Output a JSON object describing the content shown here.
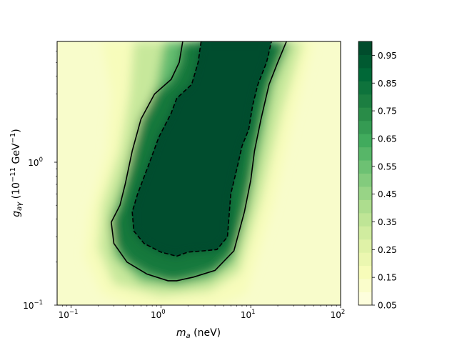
{
  "chart_data": {
    "type": "heatmap",
    "title": "",
    "xlabel": "m_a (neV)",
    "ylabel": "g_aγ (10^-11 GeV^-1)",
    "xscale": "log",
    "yscale": "log",
    "xlim": [
      0.07,
      100
    ],
    "ylim": [
      0.1,
      7.0
    ],
    "x_ticks": [
      {
        "value": 0.1,
        "base": "10",
        "exp": "−1"
      },
      {
        "value": 1,
        "base": "10",
        "exp": "0"
      },
      {
        "value": 10,
        "base": "10",
        "exp": "1"
      },
      {
        "value": 100,
        "base": "10",
        "exp": "2"
      }
    ],
    "y_ticks": [
      {
        "value": 0.1,
        "base": "10",
        "exp": "−1"
      },
      {
        "value": 1,
        "base": "10",
        "exp": "0"
      }
    ],
    "colorbar": {
      "range": [
        0.05,
        1.0
      ],
      "tick_values": [
        0.05,
        0.15,
        0.25,
        0.35,
        0.45,
        0.55,
        0.65,
        0.75,
        0.85,
        0.95
      ],
      "tick_labels": [
        "0.05",
        "0.15",
        "0.25",
        "0.35",
        "0.45",
        "0.55",
        "0.65",
        "0.75",
        "0.85",
        "0.95"
      ],
      "levels": 20,
      "colormap": [
        "#ffffe5",
        "#f7fcb9",
        "#d9f0a3",
        "#addd8e",
        "#78c679",
        "#41ab5d",
        "#238443",
        "#006837",
        "#004529"
      ]
    },
    "contours": [
      {
        "name": "solid contour",
        "style": "solid",
        "points": [
          [
            1.75,
            7.0
          ],
          [
            1.6,
            5.0
          ],
          [
            1.3,
            3.8
          ],
          [
            0.85,
            3.0
          ],
          [
            0.6,
            2.0
          ],
          [
            0.48,
            1.2
          ],
          [
            0.4,
            0.7
          ],
          [
            0.35,
            0.5
          ],
          [
            0.28,
            0.38
          ],
          [
            0.3,
            0.27
          ],
          [
            0.42,
            0.2
          ],
          [
            0.7,
            0.165
          ],
          [
            1.2,
            0.148
          ],
          [
            1.5,
            0.148
          ],
          [
            2.3,
            0.157
          ],
          [
            4.0,
            0.175
          ],
          [
            6.5,
            0.24
          ],
          [
            8.5,
            0.45
          ],
          [
            10.0,
            0.75
          ],
          [
            11.0,
            1.2
          ],
          [
            13.0,
            2.0
          ],
          [
            16.0,
            3.5
          ],
          [
            20.0,
            5.0
          ],
          [
            25.0,
            7.0
          ]
        ]
      },
      {
        "name": "dashed contour",
        "style": "dashed",
        "points": [
          [
            2.8,
            7.0
          ],
          [
            2.6,
            5.0
          ],
          [
            2.2,
            3.5
          ],
          [
            1.5,
            2.8
          ],
          [
            1.3,
            2.2
          ],
          [
            0.95,
            1.5
          ],
          [
            0.75,
            1.0
          ],
          [
            0.55,
            0.6
          ],
          [
            0.48,
            0.45
          ],
          [
            0.5,
            0.33
          ],
          [
            0.65,
            0.27
          ],
          [
            1.0,
            0.235
          ],
          [
            1.5,
            0.22
          ],
          [
            2.0,
            0.235
          ],
          [
            3.0,
            0.24
          ],
          [
            4.2,
            0.245
          ],
          [
            5.5,
            0.3
          ],
          [
            6.0,
            0.6
          ],
          [
            7.0,
            0.9
          ],
          [
            8.0,
            1.3
          ],
          [
            9.5,
            1.7
          ],
          [
            10.5,
            2.5
          ],
          [
            12.0,
            3.5
          ],
          [
            15.0,
            5.0
          ],
          [
            17.0,
            7.0
          ]
        ]
      }
    ]
  }
}
